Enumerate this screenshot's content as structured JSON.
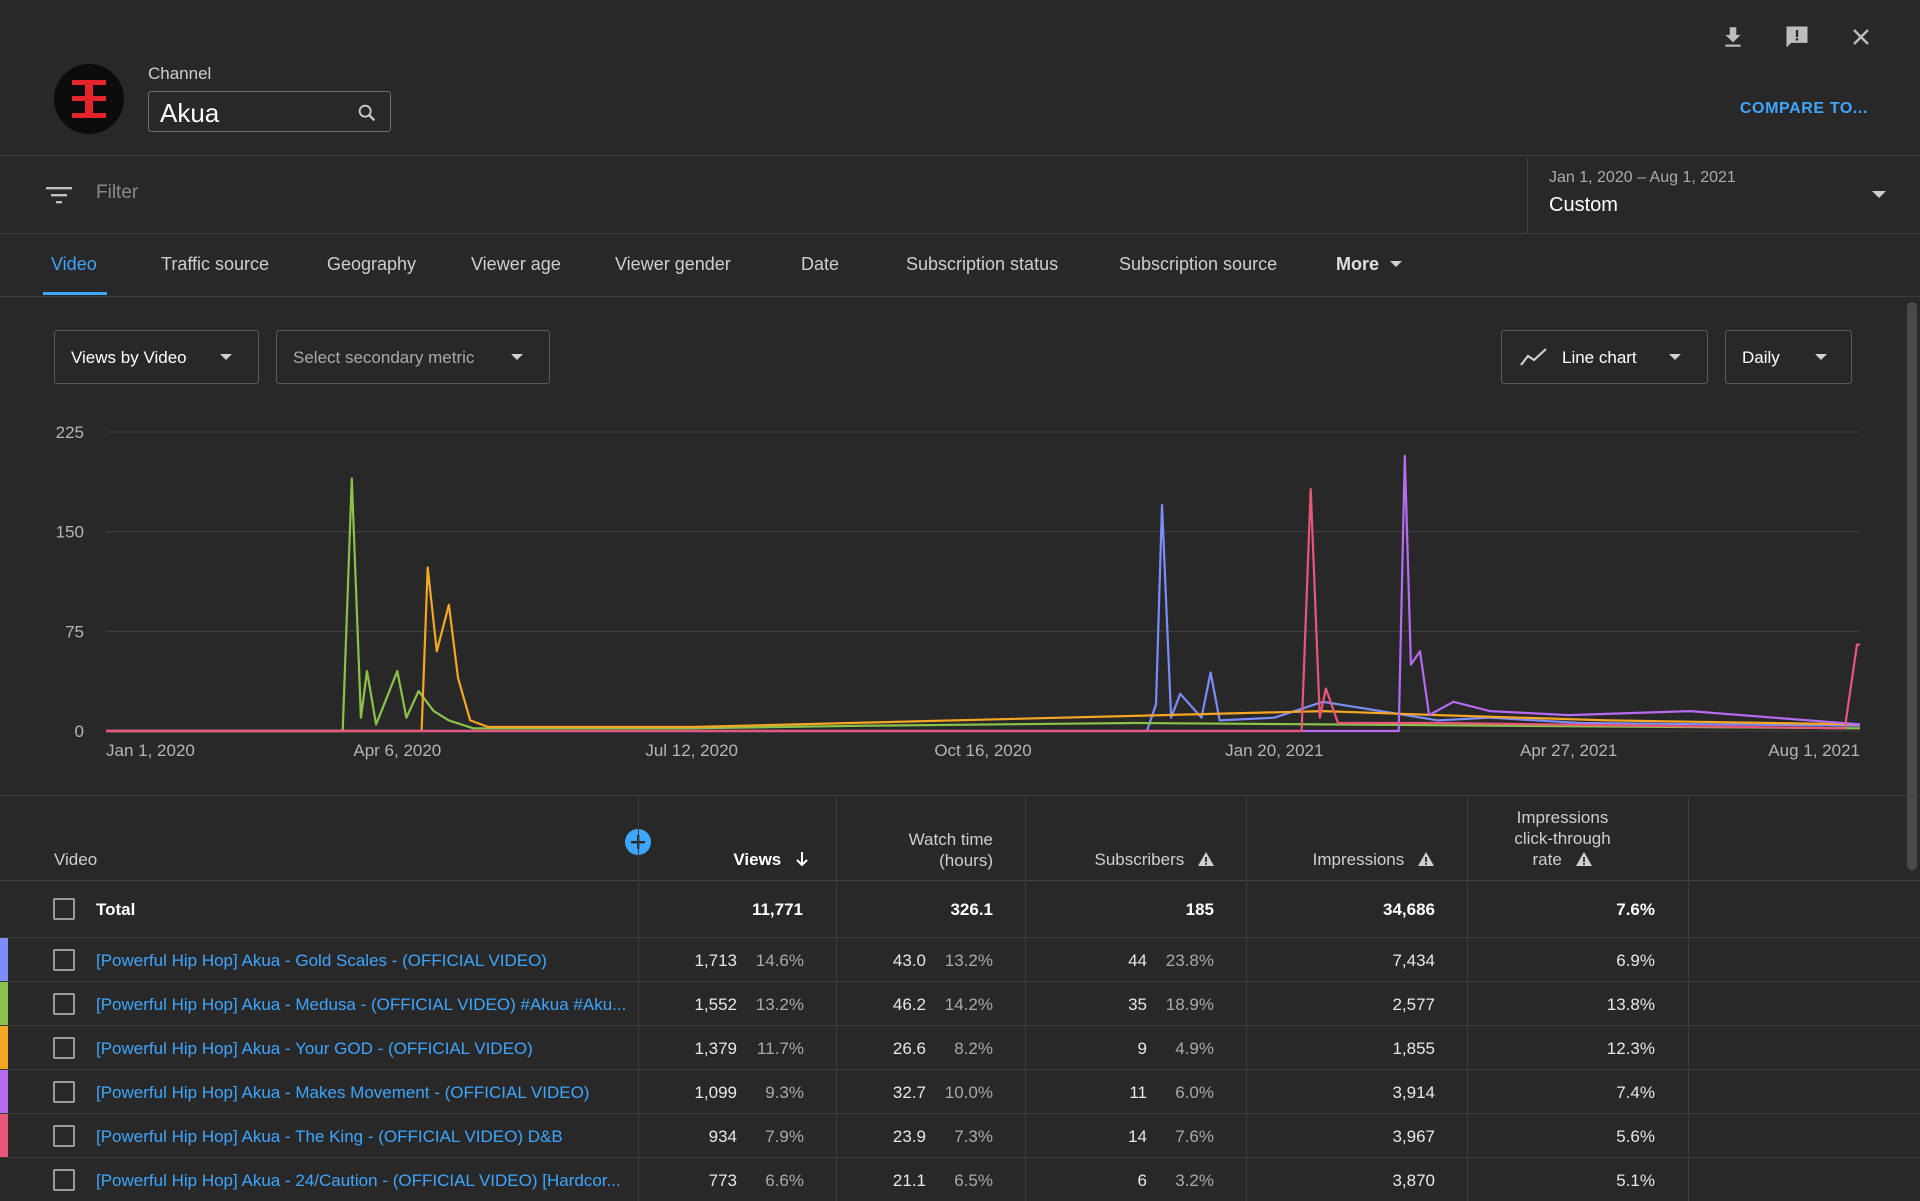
{
  "header": {
    "channel_label": "Channel",
    "channel_name": "Akua",
    "compare_label": "COMPARE TO..."
  },
  "filter": {
    "placeholder": "Filter",
    "date_range": "Jan 1, 2020 – Aug 1, 2021",
    "date_preset": "Custom"
  },
  "tabs": [
    {
      "label": "Video",
      "active": true
    },
    {
      "label": "Traffic source"
    },
    {
      "label": "Geography"
    },
    {
      "label": "Viewer age"
    },
    {
      "label": "Viewer gender"
    },
    {
      "label": "Date"
    },
    {
      "label": "Subscription status"
    },
    {
      "label": "Subscription source"
    }
  ],
  "more_label": "More",
  "controls": {
    "primary_metric": "Views by Video",
    "secondary_metric": "Select secondary metric",
    "chart_type": "Line chart",
    "granularity": "Daily"
  },
  "chart_data": {
    "type": "line",
    "ylim": [
      0,
      225
    ],
    "y_ticks": [
      "225",
      "150",
      "75",
      "0"
    ],
    "x_ticks": [
      "Jan 1, 2020",
      "Apr 6, 2020",
      "Jul 12, 2020",
      "Oct 16, 2020",
      "Jan 20, 2021",
      "Apr 27, 2021",
      "Aug 1, 2021"
    ],
    "grid": true,
    "series": [
      {
        "color": "#7c8cf8",
        "points": [
          [
            "Jan 1, 2020",
            0
          ],
          [
            "Dec 9, 2020",
            0
          ],
          [
            "Dec 12, 2020",
            20
          ],
          [
            "Dec 14, 2020",
            170
          ],
          [
            "Dec 17, 2020",
            10
          ],
          [
            "Dec 20, 2020",
            28
          ],
          [
            "Dec 27, 2020",
            10
          ],
          [
            "Dec 30, 2020",
            44
          ],
          [
            "Jan 2, 2021",
            8
          ],
          [
            "Jan 20, 2021",
            10
          ],
          [
            "Feb 5, 2021",
            22
          ],
          [
            "Mar 15, 2021",
            8
          ],
          [
            "Apr 1, 2021",
            10
          ],
          [
            "May 1, 2021",
            6
          ],
          [
            "Aug 1, 2021",
            4
          ]
        ]
      },
      {
        "color": "#8bc34a",
        "points": [
          [
            "Jan 1, 2020",
            0
          ],
          [
            "Mar 19, 2020",
            0
          ],
          [
            "Mar 22, 2020",
            190
          ],
          [
            "Mar 25, 2020",
            10
          ],
          [
            "Mar 27, 2020",
            45
          ],
          [
            "Mar 30, 2020",
            5
          ],
          [
            "Apr 6, 2020",
            45
          ],
          [
            "Apr 9, 2020",
            10
          ],
          [
            "Apr 13, 2020",
            30
          ],
          [
            "Apr 18, 2020",
            15
          ],
          [
            "Apr 23, 2020",
            8
          ],
          [
            "May 1, 2020",
            2
          ],
          [
            "Jul 12, 2020",
            2
          ],
          [
            "Sep 8, 2020",
            4
          ],
          [
            "Dec 5, 2020",
            6
          ],
          [
            "Aug 1, 2021",
            2
          ]
        ]
      },
      {
        "color": "#f5a623",
        "points": [
          [
            "Jan 1, 2020",
            0
          ],
          [
            "Apr 14, 2020",
            0
          ],
          [
            "Apr 16, 2020",
            123
          ],
          [
            "Apr 19, 2020",
            60
          ],
          [
            "Apr 23, 2020",
            95
          ],
          [
            "Apr 26, 2020",
            40
          ],
          [
            "Apr 30, 2020",
            8
          ],
          [
            "May 6, 2020",
            3
          ],
          [
            "Jul 12, 2020",
            3
          ],
          [
            "Feb 5, 2021",
            15
          ],
          [
            "Mar 15, 2021",
            12
          ],
          [
            "May 10, 2021",
            8
          ],
          [
            "Aug 1, 2021",
            5
          ]
        ]
      },
      {
        "color": "#b56bf2",
        "points": [
          [
            "Jan 1, 2020",
            0
          ],
          [
            "Mar 2, 2021",
            0
          ],
          [
            "Mar 4, 2021",
            207
          ],
          [
            "Mar 6, 2021",
            50
          ],
          [
            "Mar 9, 2021",
            60
          ],
          [
            "Mar 12, 2021",
            12
          ],
          [
            "Mar 20, 2021",
            22
          ],
          [
            "Apr 1, 2021",
            15
          ],
          [
            "Apr 27, 2021",
            12
          ],
          [
            "Jun 6, 2021",
            15
          ],
          [
            "Aug 1, 2021",
            5
          ]
        ]
      },
      {
        "color": "#e8567a",
        "points": [
          [
            "Jan 1, 2020",
            0
          ],
          [
            "Jan 29, 2021",
            0
          ],
          [
            "Feb 1, 2021",
            182
          ],
          [
            "Feb 4, 2021",
            10
          ],
          [
            "Feb 6, 2021",
            32
          ],
          [
            "Feb 10, 2021",
            6
          ],
          [
            "Mar 15, 2021",
            6
          ],
          [
            "Jul 27, 2021",
            2
          ],
          [
            "Jul 31, 2021",
            65
          ],
          [
            "Aug 1, 2021",
            65
          ]
        ]
      }
    ]
  },
  "table": {
    "headers": {
      "video": "Video",
      "views": "Views",
      "watch_time_1": "Watch time",
      "watch_time_2": "(hours)",
      "subscribers": "Subscribers",
      "impressions": "Impressions",
      "ctr_1": "Impressions",
      "ctr_2": "click-through",
      "ctr_3": "rate"
    },
    "total": {
      "label": "Total",
      "views": "11,771",
      "watch_time": "326.1",
      "subscribers": "185",
      "impressions": "34,686",
      "ctr": "7.6%"
    },
    "rows": [
      {
        "color": "#7c8cf8",
        "title": "[Powerful Hip Hop] Akua - Gold Scales - (OFFICIAL VIDEO)",
        "views": "1,713",
        "views_pct": "14.6%",
        "watch": "43.0",
        "watch_pct": "13.2%",
        "subs": "44",
        "subs_pct": "23.8%",
        "impressions": "7,434",
        "ctr": "6.9%"
      },
      {
        "color": "#8bc34a",
        "title": "[Powerful Hip Hop] Akua - Medusa - (OFFICIAL VIDEO) #Akua #Aku...",
        "views": "1,552",
        "views_pct": "13.2%",
        "watch": "46.2",
        "watch_pct": "14.2%",
        "subs": "35",
        "subs_pct": "18.9%",
        "impressions": "2,577",
        "ctr": "13.8%"
      },
      {
        "color": "#f5a623",
        "title": "[Powerful Hip Hop] Akua - Your GOD - (OFFICIAL VIDEO)",
        "views": "1,379",
        "views_pct": "11.7%",
        "watch": "26.6",
        "watch_pct": "8.2%",
        "subs": "9",
        "subs_pct": "4.9%",
        "impressions": "1,855",
        "ctr": "12.3%"
      },
      {
        "color": "#b56bf2",
        "title": "[Powerful Hip Hop] Akua - Makes Movement - (OFFICIAL VIDEO)",
        "views": "1,099",
        "views_pct": "9.3%",
        "watch": "32.7",
        "watch_pct": "10.0%",
        "subs": "11",
        "subs_pct": "6.0%",
        "impressions": "3,914",
        "ctr": "7.4%"
      },
      {
        "color": "#e8567a",
        "title": "[Powerful Hip Hop] Akua - The King - (OFFICIAL VIDEO) D&B",
        "views": "934",
        "views_pct": "7.9%",
        "watch": "23.9",
        "watch_pct": "7.3%",
        "subs": "14",
        "subs_pct": "7.6%",
        "impressions": "3,967",
        "ctr": "5.6%"
      },
      {
        "color": "",
        "title": "[Powerful Hip Hop] Akua - 24/Caution - (OFFICIAL VIDEO) [Hardcor...",
        "views": "773",
        "views_pct": "6.6%",
        "watch": "21.1",
        "watch_pct": "6.5%",
        "subs": "6",
        "subs_pct": "3.2%",
        "impressions": "3,870",
        "ctr": "5.1%"
      }
    ]
  }
}
